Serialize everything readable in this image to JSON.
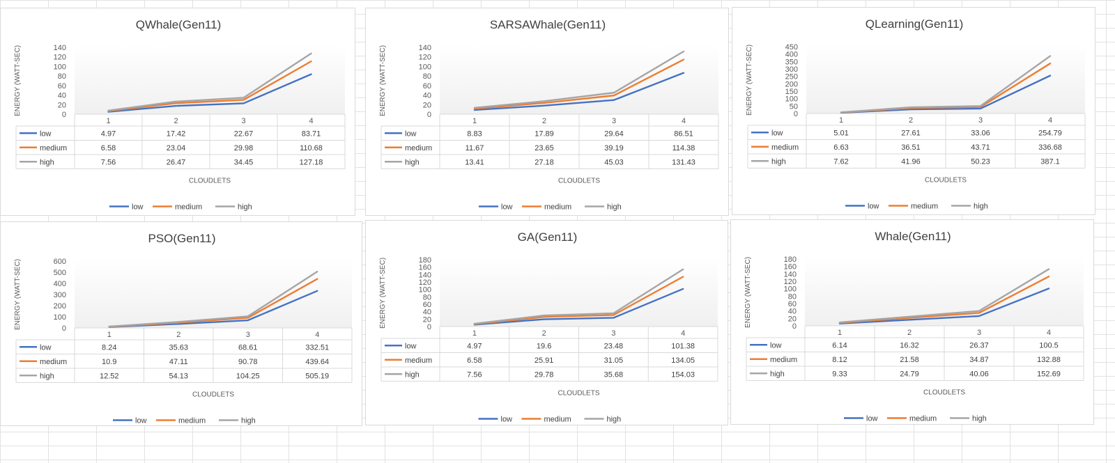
{
  "chart_data": [
    {
      "type": "line",
      "title": "QWhale(Gen11)",
      "xlabel": "CLOUDLETS",
      "ylabel": "ENERGY (WATT-SEC)",
      "categories": [
        "1",
        "2",
        "3",
        "4"
      ],
      "ylim": [
        0,
        140
      ],
      "yticks": [
        0,
        20,
        40,
        60,
        80,
        100,
        120,
        140
      ],
      "series": [
        {
          "name": "low",
          "values": [
            4.97,
            17.42,
            22.67,
            83.71
          ],
          "display": [
            "4.97",
            "17.42",
            "22.67",
            "83.71"
          ]
        },
        {
          "name": "medium",
          "values": [
            6.58,
            23.04,
            29.98,
            110.68
          ],
          "display": [
            "6.58",
            "23.04",
            "29.98",
            "110.68"
          ]
        },
        {
          "name": "high",
          "values": [
            7.56,
            26.47,
            34.45,
            127.18
          ],
          "display": [
            "7.56",
            "26.47",
            "34.45",
            "127.18"
          ]
        }
      ]
    },
    {
      "type": "line",
      "title": "SARSAWhale(Gen11)",
      "xlabel": "CLOUDLETS",
      "ylabel": "ENERGY (WATT-SEC)",
      "categories": [
        "1",
        "2",
        "3",
        "4"
      ],
      "ylim": [
        0,
        140
      ],
      "yticks": [
        0,
        20,
        40,
        60,
        80,
        100,
        120,
        140
      ],
      "series": [
        {
          "name": "low",
          "values": [
            8.83,
            17.89,
            29.64,
            86.51
          ],
          "display": [
            "8.83",
            "17.89",
            "29.64",
            "86.51"
          ]
        },
        {
          "name": "medium",
          "values": [
            11.67,
            23.65,
            39.19,
            114.38
          ],
          "display": [
            "11.67",
            "23.65",
            "39.19",
            "114.38"
          ]
        },
        {
          "name": "high",
          "values": [
            13.41,
            27.18,
            45.03,
            131.43
          ],
          "display": [
            "13.41",
            "27.18",
            "45.03",
            "131.43"
          ]
        }
      ]
    },
    {
      "type": "line",
      "title": "QLearning(Gen11)",
      "xlabel": "CLOUDLETS",
      "ylabel": "ENERGY (WATT-SEC)",
      "categories": [
        "1",
        "2",
        "3",
        "4"
      ],
      "ylim": [
        0,
        450
      ],
      "yticks": [
        0,
        50,
        100,
        150,
        200,
        250,
        300,
        350,
        400,
        450
      ],
      "series": [
        {
          "name": "low",
          "values": [
            5.01,
            27.61,
            33.06,
            254.79
          ],
          "display": [
            "5.01",
            "27.61",
            "33.06",
            "254.79"
          ]
        },
        {
          "name": "medium",
          "values": [
            6.63,
            36.51,
            43.71,
            336.68
          ],
          "display": [
            "6.63",
            "36.51",
            "43.71",
            "336.68"
          ]
        },
        {
          "name": "high",
          "values": [
            7.62,
            41.96,
            50.23,
            387.1
          ],
          "display": [
            "7.62",
            "41.96",
            "50.23",
            "387.1"
          ]
        }
      ]
    },
    {
      "type": "line",
      "title": "PSO(Gen11)",
      "xlabel": "CLOUDLETS",
      "ylabel": "ENERGY (WATT-SEC)",
      "categories": [
        "1",
        "2",
        "3",
        "4"
      ],
      "ylim": [
        0,
        600
      ],
      "yticks": [
        0,
        100,
        200,
        300,
        400,
        500,
        600
      ],
      "series": [
        {
          "name": "low",
          "values": [
            8.24,
            35.63,
            68.61,
            332.51
          ],
          "display": [
            "8.24",
            "35.63",
            "68.61",
            "332.51"
          ]
        },
        {
          "name": "medium",
          "values": [
            10.9,
            47.11,
            90.78,
            439.64
          ],
          "display": [
            "10.9",
            "47.11",
            "90.78",
            "439.64"
          ]
        },
        {
          "name": "high",
          "values": [
            12.52,
            54.13,
            104.25,
            505.19
          ],
          "display": [
            "12.52",
            "54.13",
            "104.25",
            "505.19"
          ]
        }
      ]
    },
    {
      "type": "line",
      "title": "GA(Gen11)",
      "xlabel": "CLOUDLETS",
      "ylabel": "ENERGY (WATT-SEC)",
      "categories": [
        "1",
        "2",
        "3",
        "4"
      ],
      "ylim": [
        0,
        180
      ],
      "yticks": [
        0,
        20,
        40,
        60,
        80,
        100,
        120,
        140,
        160,
        180
      ],
      "series": [
        {
          "name": "low",
          "values": [
            4.97,
            19.6,
            23.48,
            101.38
          ],
          "display": [
            "4.97",
            "19.6",
            "23.48",
            "101.38"
          ]
        },
        {
          "name": "medium",
          "values": [
            6.58,
            25.91,
            31.05,
            134.05
          ],
          "display": [
            "6.58",
            "25.91",
            "31.05",
            "134.05"
          ]
        },
        {
          "name": "high",
          "values": [
            7.56,
            29.78,
            35.68,
            154.03
          ],
          "display": [
            "7.56",
            "29.78",
            "35.68",
            "154.03"
          ]
        }
      ]
    },
    {
      "type": "line",
      "title": "Whale(Gen11)",
      "xlabel": "CLOUDLETS",
      "ylabel": "ENERGY (WATT-SEC)",
      "categories": [
        "1",
        "2",
        "3",
        "4"
      ],
      "ylim": [
        0,
        180
      ],
      "yticks": [
        0,
        20,
        40,
        60,
        80,
        100,
        120,
        140,
        160,
        180
      ],
      "series": [
        {
          "name": "low",
          "values": [
            6.14,
            16.32,
            26.37,
            100.5
          ],
          "display": [
            "6.14",
            "16.32",
            "26.37",
            "100.5"
          ]
        },
        {
          "name": "medium",
          "values": [
            8.12,
            21.58,
            34.87,
            132.88
          ],
          "display": [
            "8.12",
            "21.58",
            "34.87",
            "132.88"
          ]
        },
        {
          "name": "high",
          "values": [
            9.33,
            24.79,
            40.06,
            152.69
          ],
          "display": [
            "9.33",
            "24.79",
            "40.06",
            "152.69"
          ]
        }
      ]
    }
  ],
  "series_colors": {
    "low": "#4472c4",
    "medium": "#ed7d31",
    "high": "#a5a5a5"
  },
  "legend_position": "bottom",
  "data_table": true,
  "grid": false
}
